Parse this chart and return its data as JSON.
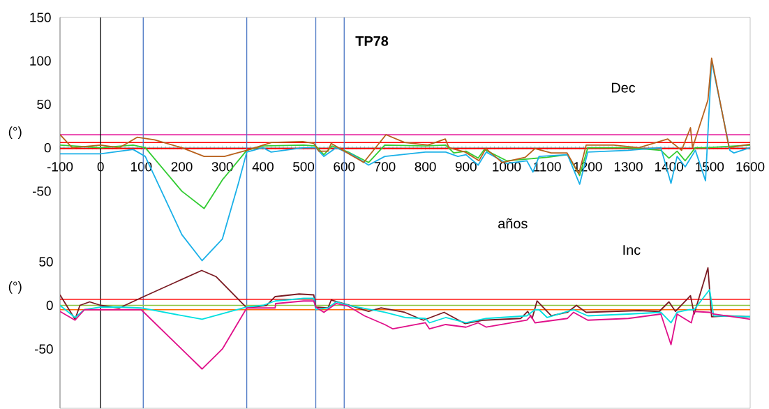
{
  "chart_data": [
    {
      "type": "line",
      "title": "TP78",
      "xlabel": "años",
      "ylabel": "(°)",
      "annotations": [
        "Dec"
      ],
      "marker": "none",
      "line_style": "solid",
      "xlim": [
        -100,
        1600
      ],
      "ylim": [
        -300,
        150
      ],
      "xticks": [
        -100,
        0,
        100,
        200,
        300,
        400,
        500,
        600,
        700,
        800,
        900,
        1000,
        1100,
        1200,
        1300,
        1400,
        1500,
        1600
      ],
      "yticks": [
        -50,
        0,
        50,
        100,
        150
      ],
      "tick_labels": "xy",
      "ref_lines": [
        {
          "axis": "y",
          "value": 15,
          "color": "#e6199a"
        },
        {
          "axis": "y",
          "value": 6,
          "color": "#ff0000"
        },
        {
          "axis": "y",
          "value": -1,
          "color": "#ff0000"
        },
        {
          "axis": "x",
          "value": 0,
          "color": "#000000"
        },
        {
          "axis": "x",
          "value": 105,
          "color": "#4a76c4"
        },
        {
          "axis": "x",
          "value": 360,
          "color": "#4a76c4"
        },
        {
          "axis": "x",
          "value": 530,
          "color": "#4a76c4"
        },
        {
          "axis": "x",
          "value": 600,
          "color": "#4a76c4"
        }
      ],
      "series": [
        {
          "color": "#33cc33",
          "x": [
            -100,
            0,
            80,
            110,
            200,
            255,
            300,
            360,
            400,
            500,
            530,
            550,
            570,
            610,
            660,
            700,
            800,
            850,
            870,
            900,
            930,
            945,
            1000,
            1100,
            1150,
            1180,
            1200,
            1300,
            1380,
            1400,
            1420,
            1440,
            1465,
            1490,
            1600
          ],
          "values": [
            3,
            0,
            3,
            0,
            -50,
            -70,
            -37,
            -3,
            2,
            3,
            2,
            -8,
            2,
            -5,
            -17,
            3,
            2,
            3,
            -6,
            -4,
            -12,
            -2,
            -15,
            -11,
            -8,
            -32,
            0,
            0,
            -3,
            -12,
            -4,
            -15,
            0,
            0,
            3
          ]
        },
        {
          "color": "#1ab0e8",
          "x": [
            -100,
            0,
            80,
            110,
            150,
            200,
            250,
            300,
            340,
            360,
            400,
            420,
            500,
            530,
            550,
            580,
            620,
            660,
            700,
            800,
            850,
            880,
            900,
            930,
            950,
            1000,
            1050,
            1065,
            1080,
            1150,
            1180,
            1200,
            1300,
            1380,
            1405,
            1420,
            1440,
            1465,
            1490,
            1505,
            1550,
            1560,
            1600
          ],
          "values": [
            -7,
            -7,
            -2,
            -10,
            -50,
            -100,
            -130,
            -105,
            -40,
            -5,
            0,
            -5,
            0,
            0,
            -10,
            0,
            -8,
            -20,
            -10,
            -5,
            -5,
            -10,
            -8,
            -20,
            -5,
            -18,
            -15,
            -28,
            -10,
            -8,
            -42,
            -5,
            -3,
            0,
            -41,
            -10,
            -22,
            -3,
            -38,
            100,
            -3,
            -6,
            0
          ]
        },
        {
          "color": "#b8611c",
          "x": [
            -100,
            -70,
            0,
            46,
            90,
            133,
            200,
            255,
            305,
            360,
            421,
            498,
            525,
            538,
            560,
            568,
            608,
            648,
            703,
            749,
            806,
            849,
            858,
            898,
            932,
            949,
            989,
            1046,
            1070,
            1110,
            1149,
            1178,
            1196,
            1264,
            1326,
            1397,
            1431,
            1453,
            1458,
            1496,
            1505,
            1530,
            1548,
            1600
          ],
          "values": [
            15,
            0,
            3,
            0,
            12,
            9,
            0,
            -10,
            -10,
            -3,
            6,
            7,
            5,
            -4,
            -4,
            5,
            -6,
            -17,
            15,
            6,
            3,
            10,
            0,
            -5,
            -15,
            -1,
            -17,
            -11,
            -1,
            -6,
            -6,
            -30,
            3,
            3,
            0,
            10,
            -3,
            23,
            0,
            55,
            103,
            43,
            0,
            4
          ]
        }
      ]
    },
    {
      "type": "line",
      "ylabel": "(°)",
      "annotations": [
        "Inc"
      ],
      "marker": "none",
      "line_style": "solid",
      "xlim": [
        -100,
        1600
      ],
      "ylim": [
        -118,
        330
      ],
      "yticks": [
        -50,
        0,
        50
      ],
      "tick_labels": "y",
      "ref_lines": [
        {
          "axis": "y",
          "value": 7,
          "color": "#ff0000"
        },
        {
          "axis": "y",
          "value": 0,
          "color": "#8cc63f"
        },
        {
          "axis": "y",
          "value": -5,
          "color": "#ff6a00"
        }
      ],
      "series": [
        {
          "color": "#7a1a22",
          "x": [
            -100,
            -63,
            -51,
            -27,
            0,
            46,
            106,
            249,
            284,
            360,
            409,
            430,
            489,
            525,
            530,
            560,
            568,
            613,
            660,
            691,
            749,
            795,
            846,
            898,
            944,
            1035,
            1052,
            1063,
            1075,
            1110,
            1150,
            1172,
            1196,
            1326,
            1376,
            1400,
            1416,
            1453,
            1462,
            1496,
            1505,
            1543,
            1589,
            1600
          ],
          "values": [
            12,
            -16,
            0,
            4,
            0,
            -3,
            10,
            40,
            33,
            -3,
            0,
            10,
            13,
            12,
            -2,
            -3,
            6,
            0,
            -7,
            -3,
            -8,
            -17,
            -8,
            -21,
            -17,
            -15,
            -7,
            -15,
            5,
            -12,
            -8,
            0,
            -8,
            -6,
            -7,
            4,
            -7,
            11,
            -10,
            43,
            -13,
            -12,
            -13,
            -13
          ]
        },
        {
          "color": "#00e0e0",
          "x": [
            -100,
            -63,
            -40,
            0,
            50,
            100,
            250,
            360,
            400,
            430,
            500,
            525,
            530,
            560,
            580,
            610,
            700,
            750,
            800,
            810,
            850,
            900,
            950,
            1050,
            1070,
            1080,
            1100,
            1165,
            1200,
            1300,
            1380,
            1405,
            1420,
            1450,
            1462,
            1500,
            1510,
            1600
          ],
          "values": [
            0,
            -14,
            -5,
            -2,
            -2,
            -3,
            -16,
            -2,
            0,
            5,
            8,
            8,
            -5,
            -3,
            4,
            0,
            -8,
            -14,
            -15,
            -20,
            -14,
            -20,
            -15,
            -12,
            -5,
            -5,
            -14,
            -5,
            -12,
            -10,
            -8,
            -20,
            -8,
            -5,
            -5,
            18,
            -12,
            -13
          ]
        },
        {
          "color": "#e0108a",
          "x": [
            -100,
            -63,
            -40,
            0,
            100,
            250,
            300,
            360,
            430,
            431,
            500,
            525,
            530,
            550,
            580,
            610,
            650,
            700,
            720,
            800,
            810,
            850,
            900,
            930,
            950,
            1050,
            1060,
            1070,
            1150,
            1165,
            1200,
            1300,
            1380,
            1405,
            1420,
            1455,
            1462,
            1500,
            1510,
            1600
          ],
          "values": [
            -7,
            -17,
            -5,
            -5,
            -5,
            -73,
            -50,
            -3,
            -3,
            2,
            5,
            5,
            -2,
            -8,
            2,
            -1,
            -12,
            -22,
            -27,
            -20,
            -27,
            -22,
            -25,
            -20,
            -25,
            -17,
            -12,
            -20,
            -15,
            -8,
            -17,
            -15,
            -10,
            -45,
            -10,
            -20,
            -7,
            -8,
            -10,
            -16
          ]
        }
      ]
    }
  ]
}
